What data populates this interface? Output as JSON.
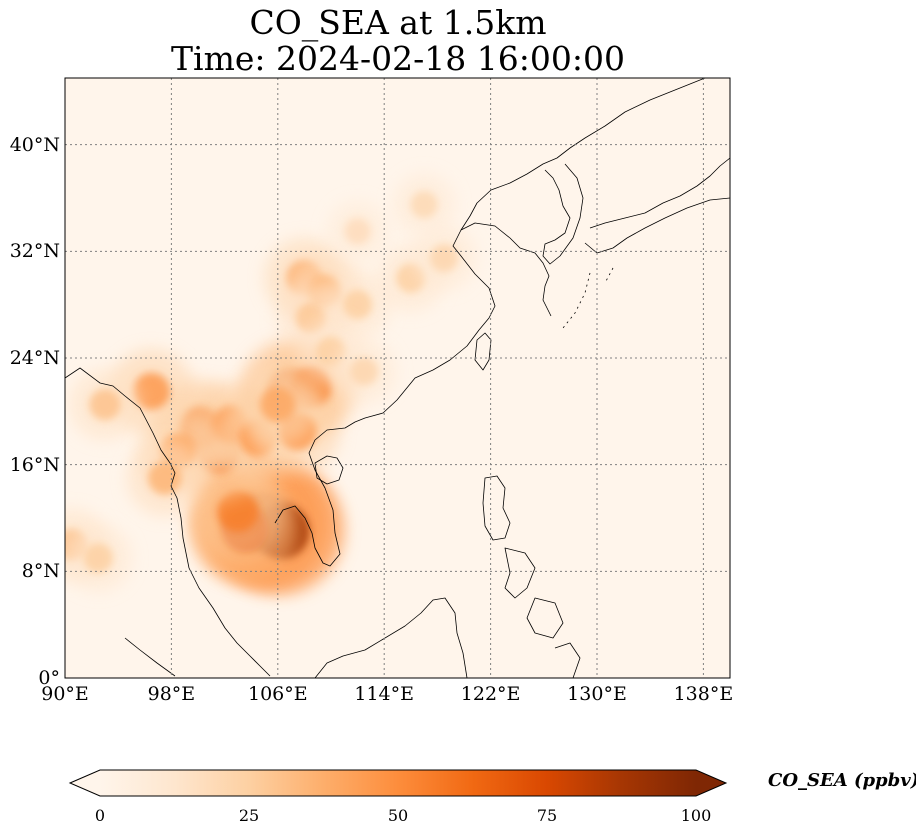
{
  "figure": {
    "title_line1": "CO_SEA at 1.5km",
    "title_line2": "Time: 2024-02-18 16:00:00"
  },
  "map": {
    "lon_range": [
      90,
      140
    ],
    "lat_range": [
      0,
      45
    ],
    "gridline_style": "dotted",
    "gridline_color": "#808080",
    "coastline_color": "#000000",
    "background_color": "#fff5eb",
    "x_ticks": [
      {
        "lon": 90,
        "label": "90°E"
      },
      {
        "lon": 98,
        "label": "98°E"
      },
      {
        "lon": 106,
        "label": "106°E"
      },
      {
        "lon": 114,
        "label": "114°E"
      },
      {
        "lon": 122,
        "label": "122°E"
      },
      {
        "lon": 130,
        "label": "130°E"
      },
      {
        "lon": 138,
        "label": "138°E"
      }
    ],
    "y_ticks": [
      {
        "lat": 0,
        "label": "0°"
      },
      {
        "lat": 8,
        "label": "8°N"
      },
      {
        "lat": 16,
        "label": "16°N"
      },
      {
        "lat": 24,
        "label": "24°N"
      },
      {
        "lat": 32,
        "label": "32°N"
      },
      {
        "lat": 40,
        "label": "40°N"
      }
    ],
    "hotspots": [
      {
        "lon": 105.5,
        "lat": 11.5,
        "value": 100
      },
      {
        "lon": 104.5,
        "lat": 11.8,
        "value": 95
      },
      {
        "lon": 106.3,
        "lat": 11.0,
        "value": 90
      },
      {
        "lon": 103.5,
        "lat": 11.2,
        "value": 70
      },
      {
        "lon": 103.0,
        "lat": 12.5,
        "value": 55
      },
      {
        "lon": 101.5,
        "lat": 17.0,
        "value": 60
      },
      {
        "lon": 100.2,
        "lat": 18.8,
        "value": 55
      },
      {
        "lon": 102.5,
        "lat": 19.0,
        "value": 45
      },
      {
        "lon": 104.5,
        "lat": 18.0,
        "value": 45
      },
      {
        "lon": 107.0,
        "lat": 21.5,
        "value": 65
      },
      {
        "lon": 108.5,
        "lat": 21.8,
        "value": 55
      },
      {
        "lon": 107.5,
        "lat": 18.5,
        "value": 45
      },
      {
        "lon": 106.0,
        "lat": 20.5,
        "value": 40
      },
      {
        "lon": 96.5,
        "lat": 21.5,
        "value": 45
      },
      {
        "lon": 93.0,
        "lat": 20.5,
        "value": 30
      },
      {
        "lon": 98.5,
        "lat": 17.0,
        "value": 40
      },
      {
        "lon": 97.5,
        "lat": 15.0,
        "value": 35
      },
      {
        "lon": 90.5,
        "lat": 10.0,
        "value": 30
      },
      {
        "lon": 92.5,
        "lat": 9.0,
        "value": 25
      },
      {
        "lon": 108.0,
        "lat": 30.0,
        "value": 40
      },
      {
        "lon": 109.5,
        "lat": 29.0,
        "value": 35
      },
      {
        "lon": 108.5,
        "lat": 27.0,
        "value": 28
      },
      {
        "lon": 112.0,
        "lat": 28.0,
        "value": 25
      },
      {
        "lon": 116.0,
        "lat": 30.0,
        "value": 25
      },
      {
        "lon": 118.5,
        "lat": 31.5,
        "value": 22
      },
      {
        "lon": 110.0,
        "lat": 24.5,
        "value": 25
      },
      {
        "lon": 112.5,
        "lat": 23.0,
        "value": 22
      },
      {
        "lon": 117.0,
        "lat": 35.5,
        "value": 20
      },
      {
        "lon": 112.0,
        "lat": 33.5,
        "value": 18
      }
    ]
  },
  "colorbar": {
    "label": "CO_SEA (ppbv)",
    "min": 0,
    "max": 100,
    "extend": "both",
    "ticks": [
      {
        "value": 0,
        "label": "0"
      },
      {
        "value": 25,
        "label": "25"
      },
      {
        "value": 50,
        "label": "50"
      },
      {
        "value": 75,
        "label": "75"
      },
      {
        "value": 100,
        "label": "100"
      }
    ],
    "colormap_stops": [
      "#fff5eb",
      "#fee6ce",
      "#fdd0a2",
      "#fdae6b",
      "#fd8d3c",
      "#f16913",
      "#d94801",
      "#a63603",
      "#7f2704"
    ],
    "colormap_name": "OrRd"
  }
}
